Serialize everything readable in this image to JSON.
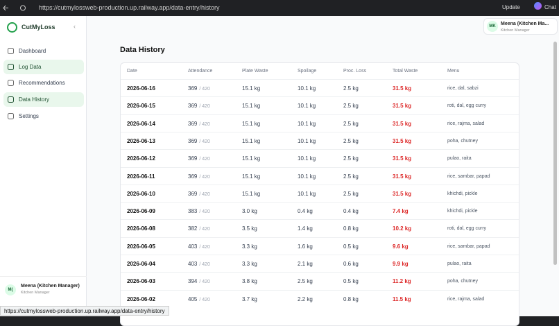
{
  "browser": {
    "url": "https://cutmylossweb-production.up.railway.app/data-entry/history",
    "buttons": [
      "Update",
      "Chat"
    ]
  },
  "sidebar": {
    "brand": "CutMyLoss",
    "nav": [
      "Dashboard",
      "Log Data",
      "Recommendations",
      "Data History",
      "Settings"
    ],
    "user": {
      "initials": "M(",
      "name": "Meena (Kitchen Manager)",
      "role": "Kitchen Manager"
    }
  },
  "header": {
    "user": {
      "initials": "MK",
      "name": "Meena (Kitchen Ma...",
      "role": "Kitchen Manager"
    }
  },
  "page": {
    "title": "Data History"
  },
  "table": {
    "columns": [
      "Date",
      "Attendance",
      "Plate Waste",
      "Spoilage",
      "Proc. Loss",
      "Total Waste",
      "Menu"
    ],
    "rows": [
      [
        "2026-06-16",
        "369",
        "/ 420",
        "15.1 kg",
        "10.1 kg",
        "2.5 kg",
        "31.5 kg",
        "rice, dal, sabzi"
      ],
      [
        "2026-06-15",
        "369",
        "/ 420",
        "15.1 kg",
        "10.1 kg",
        "2.5 kg",
        "31.5 kg",
        "roti, dal, egg curry"
      ],
      [
        "2026-06-14",
        "369",
        "/ 420",
        "15.1 kg",
        "10.1 kg",
        "2.5 kg",
        "31.5 kg",
        "rice, rajma, salad"
      ],
      [
        "2026-06-13",
        "369",
        "/ 420",
        "15.1 kg",
        "10.1 kg",
        "2.5 kg",
        "31.5 kg",
        "poha, chutney"
      ],
      [
        "2026-06-12",
        "369",
        "/ 420",
        "15.1 kg",
        "10.1 kg",
        "2.5 kg",
        "31.5 kg",
        "pulao, raita"
      ],
      [
        "2026-06-11",
        "369",
        "/ 420",
        "15.1 kg",
        "10.1 kg",
        "2.5 kg",
        "31.5 kg",
        "rice, sambar, papad"
      ],
      [
        "2026-06-10",
        "369",
        "/ 420",
        "15.1 kg",
        "10.1 kg",
        "2.5 kg",
        "31.5 kg",
        "khichdi, pickle"
      ],
      [
        "2026-06-09",
        "383",
        "/ 420",
        "3.0 kg",
        "0.4 kg",
        "0.4 kg",
        "7.4 kg",
        "khichdi, pickle"
      ],
      [
        "2026-06-08",
        "382",
        "/ 420",
        "3.5 kg",
        "1.4 kg",
        "0.8 kg",
        "10.2 kg",
        "roti, dal, egg curry"
      ],
      [
        "2026-06-05",
        "403",
        "/ 420",
        "3.3 kg",
        "1.6 kg",
        "0.5 kg",
        "9.6 kg",
        "rice, sambar, papad"
      ],
      [
        "2026-06-04",
        "403",
        "/ 420",
        "3.3 kg",
        "2.1 kg",
        "0.6 kg",
        "9.9 kg",
        "pulao, raita"
      ],
      [
        "2026-06-03",
        "394",
        "/ 420",
        "3.8 kg",
        "2.5 kg",
        "0.5 kg",
        "11.2 kg",
        "poha, chutney"
      ],
      [
        "2026-06-02",
        "405",
        "/ 420",
        "3.7 kg",
        "2.2 kg",
        "0.8 kg",
        "11.5 kg",
        "rice, rajma, salad"
      ]
    ]
  },
  "status": {
    "url": "https://cutmylossweb-production.up.railway.app/data-entry/history"
  }
}
